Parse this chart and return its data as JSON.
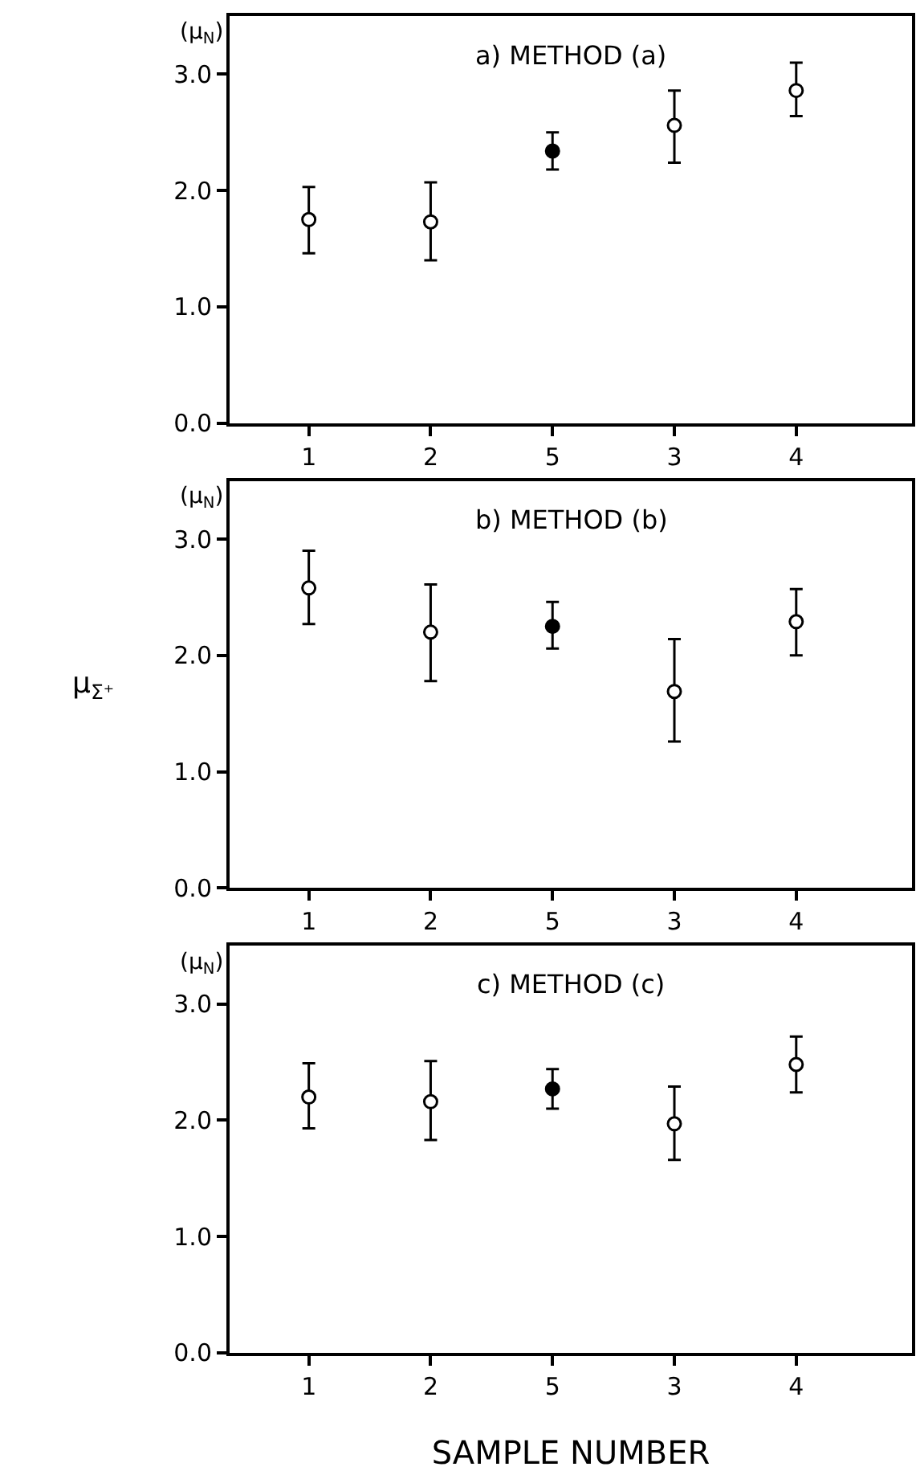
{
  "chart_data": [
    {
      "type": "scatter",
      "title": "a) METHOD (a)",
      "annotations": [
        "(μ$_{N}$)"
      ],
      "categories": [
        "1",
        "2",
        "5",
        "3",
        "4"
      ],
      "ylim": [
        0,
        3.5
      ],
      "yticks": [
        {
          "value": 0,
          "label": "0.0"
        },
        {
          "value": 1,
          "label": "1.0"
        },
        {
          "value": 2,
          "label": "2.0"
        },
        {
          "value": 3,
          "label": "3.0"
        }
      ],
      "marker": "circle",
      "grid": false,
      "series": [
        {
          "color": "#000000",
          "colors": [
            "#ffffff",
            "#ffffff",
            "#000000",
            "#ffffff",
            "#ffffff"
          ],
          "values": [
            1.75,
            1.73,
            2.34,
            2.56,
            2.86
          ],
          "errors": [
            [
              1.46,
              2.03
            ],
            [
              1.4,
              2.07
            ],
            [
              2.18,
              2.5
            ],
            [
              2.24,
              2.86
            ],
            [
              2.64,
              3.1
            ]
          ]
        }
      ]
    },
    {
      "type": "scatter",
      "title": "b) METHOD (b)",
      "ylabel": "μ$_{Σ⁺}$",
      "annotations": [
        "(μ$_{N}$)"
      ],
      "categories": [
        "1",
        "2",
        "5",
        "3",
        "4"
      ],
      "ylim": [
        0,
        3.5
      ],
      "yticks": [
        {
          "value": 0,
          "label": "0.0"
        },
        {
          "value": 1,
          "label": "1.0"
        },
        {
          "value": 2,
          "label": "2.0"
        },
        {
          "value": 3,
          "label": "3.0"
        }
      ],
      "marker": "circle",
      "grid": false,
      "series": [
        {
          "color": "#000000",
          "colors": [
            "#ffffff",
            "#ffffff",
            "#000000",
            "#ffffff",
            "#ffffff"
          ],
          "values": [
            2.58,
            2.2,
            2.25,
            1.69,
            2.29
          ],
          "errors": [
            [
              2.27,
              2.9
            ],
            [
              1.78,
              2.61
            ],
            [
              2.06,
              2.46
            ],
            [
              1.26,
              2.14
            ],
            [
              2.0,
              2.57
            ]
          ]
        }
      ]
    },
    {
      "type": "scatter",
      "title": "c) METHOD (c)",
      "xlabel": "SAMPLE NUMBER",
      "annotations": [
        "(μ$_{N}$)"
      ],
      "categories": [
        "1",
        "2",
        "5",
        "3",
        "4"
      ],
      "ylim": [
        0,
        3.5
      ],
      "yticks": [
        {
          "value": 0,
          "label": "0.0"
        },
        {
          "value": 1,
          "label": "1.0"
        },
        {
          "value": 2,
          "label": "2.0"
        },
        {
          "value": 3,
          "label": "3.0"
        }
      ],
      "marker": "circle",
      "grid": false,
      "series": [
        {
          "color": "#000000",
          "colors": [
            "#ffffff",
            "#ffffff",
            "#000000",
            "#ffffff",
            "#ffffff"
          ],
          "values": [
            2.2,
            2.16,
            2.27,
            1.97,
            2.48
          ],
          "errors": [
            [
              1.93,
              2.49
            ],
            [
              1.83,
              2.51
            ],
            [
              2.1,
              2.44
            ],
            [
              1.66,
              2.29
            ],
            [
              2.24,
              2.72
            ]
          ]
        }
      ]
    }
  ]
}
